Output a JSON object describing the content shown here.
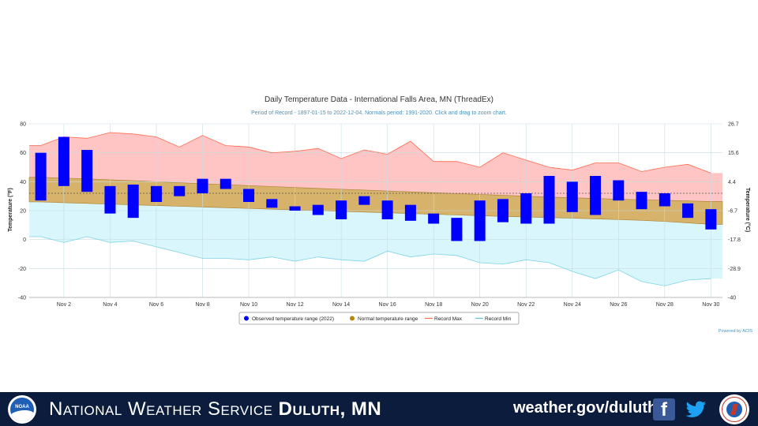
{
  "chart_data": {
    "type": "bar",
    "title": "Daily Temperature Data - International Falls Area, MN (ThreadEx)",
    "subtitle": "Period of Record - 1897-01-15 to 2022-12-04. Normals period: 1991-2020. Click and drag to zoom chart.",
    "ylabel": "Temperature (°F)",
    "y2label": "Temperature (°C)",
    "ylim": [
      -40,
      80
    ],
    "yticks": [
      80,
      60,
      40,
      20,
      0,
      -20,
      -40
    ],
    "y2ticks": [
      "26.7",
      "15.6",
      "4.4",
      "-6.7",
      "-17.8",
      "-28.9",
      "-40"
    ],
    "xlim": [
      0.5,
      30.5
    ],
    "x_tick_days": [
      2,
      4,
      6,
      8,
      10,
      12,
      14,
      16,
      18,
      20,
      22,
      24,
      26,
      28,
      30
    ],
    "x_tick_labels": [
      "Nov 2",
      "Nov 4",
      "Nov 6",
      "Nov 8",
      "Nov 10",
      "Nov 12",
      "Nov 14",
      "Nov 16",
      "Nov 18",
      "Nov 20",
      "Nov 22",
      "Nov 24",
      "Nov 26",
      "Nov 28",
      "Nov 30"
    ],
    "days": [
      1,
      2,
      3,
      4,
      5,
      6,
      7,
      8,
      9,
      10,
      11,
      12,
      13,
      14,
      15,
      16,
      17,
      18,
      19,
      20,
      21,
      22,
      23,
      24,
      25,
      26,
      27,
      28,
      29,
      30
    ],
    "mean_line": 32,
    "series": [
      {
        "name": "Observed temperature range (2022)",
        "color": "#0000ff",
        "high": [
          60,
          71,
          62,
          37,
          38,
          37,
          37,
          42,
          42,
          35,
          28,
          23,
          24,
          27,
          30,
          27,
          24,
          18,
          15,
          27,
          28,
          32,
          44,
          40,
          44,
          41,
          33,
          32,
          25,
          21
        ],
        "low": [
          27,
          37,
          33,
          18,
          15,
          26,
          30,
          32,
          35,
          26,
          22,
          20,
          17,
          14,
          24,
          14,
          13,
          11,
          -1,
          -1,
          12,
          11,
          11,
          19,
          17,
          27,
          21,
          23,
          15,
          7
        ]
      },
      {
        "name": "Normal temperature range",
        "color": "#b8860b",
        "high": [
          43,
          42.5,
          42,
          41.3,
          40.7,
          40,
          39.3,
          38.6,
          38,
          37.3,
          36.7,
          36,
          35.4,
          34.8,
          34.2,
          33.6,
          33,
          32.4,
          31.8,
          31.2,
          30.6,
          30,
          29.4,
          28.9,
          28.4,
          27.9,
          27.5,
          27.1,
          26.7,
          26.3
        ],
        "low": [
          26,
          25.5,
          25,
          24.5,
          24,
          23.5,
          23,
          22.5,
          22,
          21.5,
          21,
          20.5,
          20,
          19.5,
          19,
          18.5,
          18,
          17.5,
          17,
          16.5,
          16,
          15.6,
          15.2,
          14.8,
          14.3,
          13.8,
          13.3,
          12.5,
          11.5,
          10.5
        ]
      },
      {
        "name": "Record Max",
        "color": "#ff6a4d",
        "values": [
          65,
          71,
          70,
          74,
          73,
          71,
          64,
          72,
          65,
          64,
          60,
          61,
          63,
          56,
          62,
          59,
          68,
          54,
          54,
          50,
          60,
          55,
          50,
          48,
          53,
          53,
          47,
          50,
          52,
          46
        ]
      },
      {
        "name": "Record Min",
        "color": "#7fd3e6",
        "values": [
          2,
          -2,
          2,
          -2,
          -1,
          -5,
          -9,
          -13,
          -13,
          -14,
          -12,
          -15,
          -12,
          -14,
          -15,
          -8,
          -12,
          -10,
          -11,
          -16,
          -17,
          -14,
          -16,
          -22,
          -27,
          -21,
          -29,
          -32,
          -28,
          -27
        ]
      }
    ],
    "legend_position": "bottom-center",
    "credit": "Powered by ACIS",
    "colors": {
      "record_max_fill": "#ffc4c4",
      "record_min_fill": "#d8f6fb",
      "normal_fill": "#d6b26a",
      "grid": "#c7dde2"
    }
  },
  "footer": {
    "title_plain": "National Weather Service ",
    "title_bold": "Duluth, MN",
    "url": "weather.gov/duluth",
    "noaa_logo_text": "NOAA",
    "facebook_glyph": "f",
    "icons": [
      "noaa-logo",
      "facebook-icon",
      "twitter-icon",
      "nws-logo"
    ],
    "background": "#0b1c3d"
  }
}
